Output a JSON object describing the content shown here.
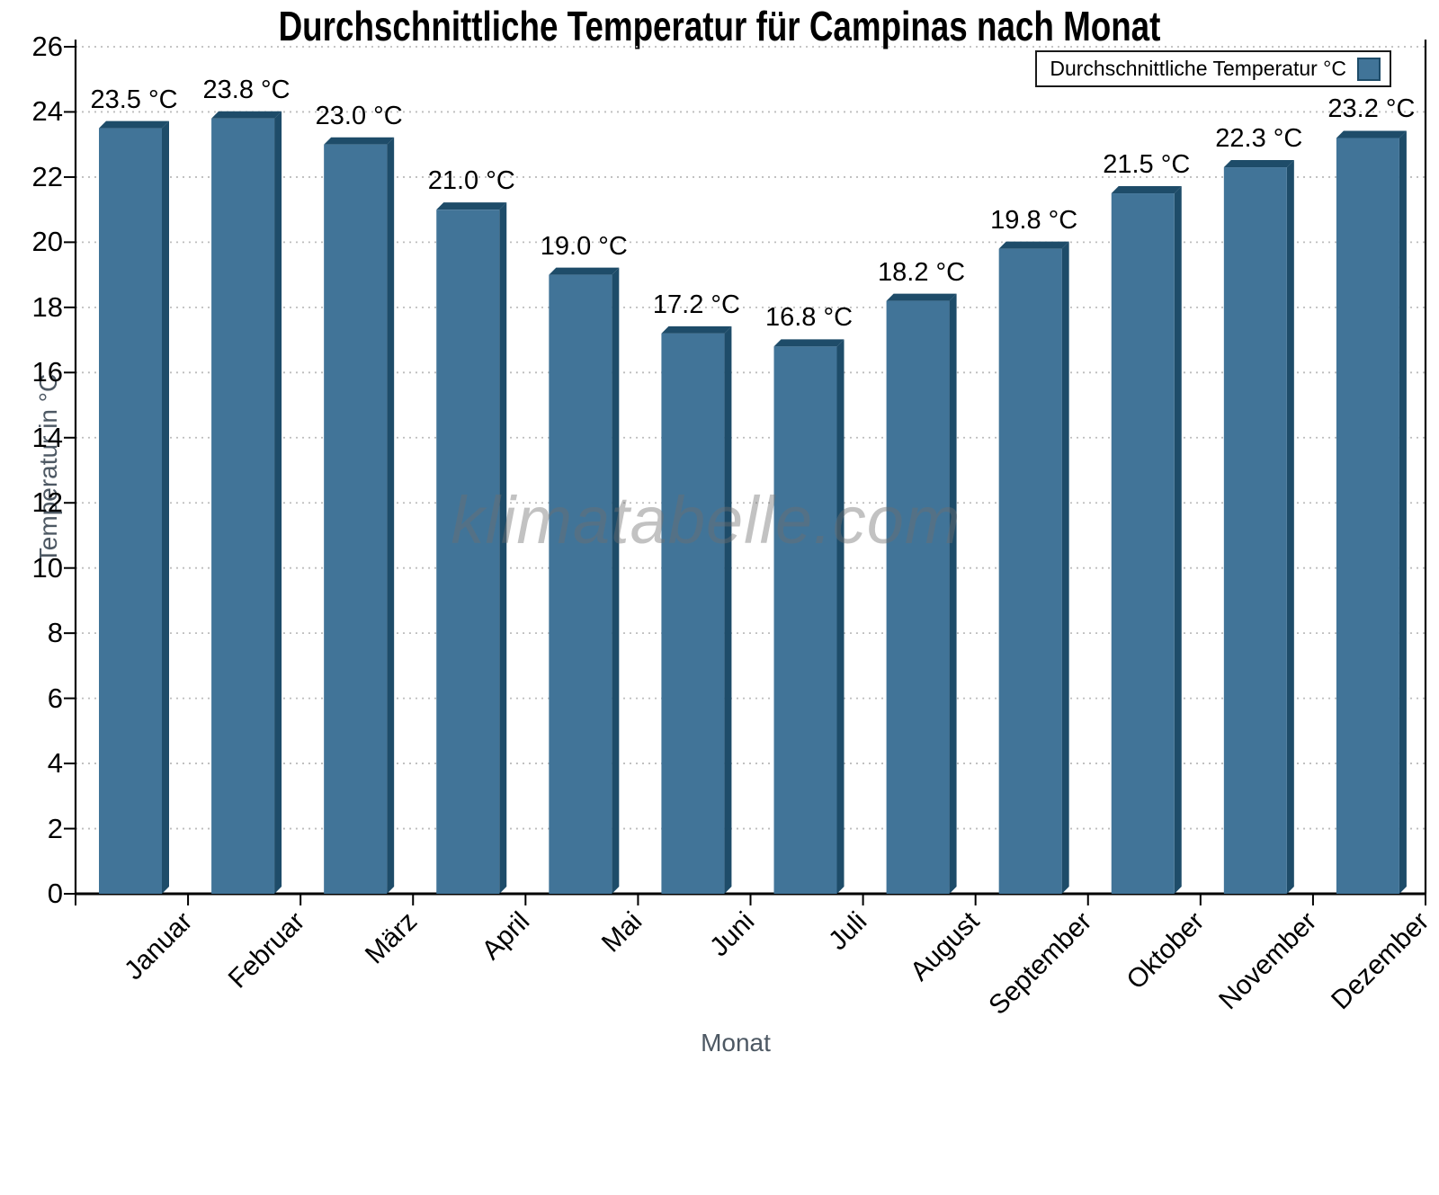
{
  "chart_data": {
    "type": "bar",
    "title": "Durchschnittliche Temperatur für Campinas nach Monat",
    "categories": [
      "Januar",
      "Februar",
      "März",
      "April",
      "Mai",
      "Juni",
      "Juli",
      "August",
      "September",
      "Oktober",
      "November",
      "Dezember"
    ],
    "values": [
      23.5,
      23.8,
      23.0,
      21.0,
      19.0,
      17.2,
      16.8,
      18.2,
      19.8,
      21.5,
      22.3,
      23.2
    ],
    "value_suffix": " °C",
    "value_decimals": 1,
    "xlabel": "Monat",
    "ylabel": "Temperatur in °C",
    "ylim": [
      0,
      26
    ],
    "ytick_step": 2,
    "legend_label": "Durchschnittliche Temperatur °C",
    "legend_position": "top-right",
    "watermark": "klimatabelle.com",
    "grid": "horizontal-dotted",
    "colors": {
      "bar_front": "#417498",
      "bar_side": "#1e4c69",
      "axis": "#000000",
      "grid": "#bdbdbd",
      "axis_title": "#4d5863",
      "text": "#000000",
      "watermark": "#6f6f6f",
      "background": "#ffffff"
    }
  }
}
